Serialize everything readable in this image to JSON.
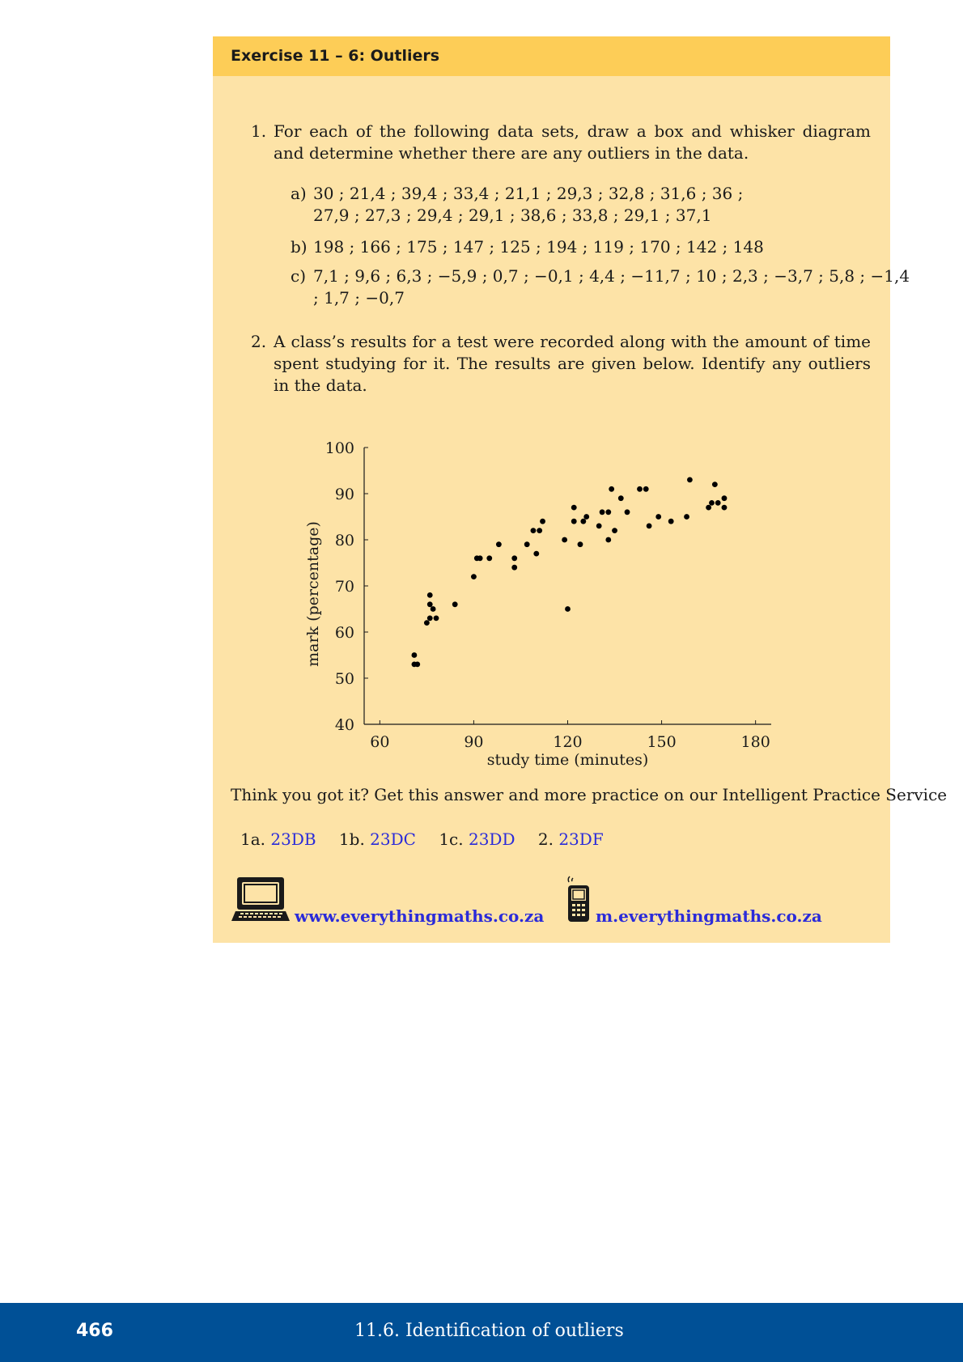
{
  "exercise": {
    "title": "Exercise 11 – 6: Outliers"
  },
  "questions": {
    "q1": {
      "number": "1.",
      "text": "For each of the following data sets, draw a box and whisker diagram and determine whether there are any outliers in the data.",
      "a": {
        "label": "a)",
        "line1": "30 ; 21,4 ; 39,4 ; 33,4 ; 21,1 ; 29,3 ; 32,8 ; 31,6 ; 36 ;",
        "line2": "27,9 ; 27,3 ; 29,4 ; 29,1 ; 38,6 ; 33,8 ; 29,1 ; 37,1"
      },
      "b": {
        "label": "b)",
        "line1": "198 ; 166 ; 175 ; 147 ; 125 ; 194 ; 119 ; 170 ; 142 ; 148"
      },
      "c": {
        "label": "c)",
        "line1": "7,1 ; 9,6 ; 6,3 ; −5,9 ; 0,7 ; −0,1 ; 4,4 ; −11,7 ; 10 ; 2,3 ; −3,7 ; 5,8 ; −1,4",
        "line2": "; 1,7 ; −0,7"
      }
    },
    "q2": {
      "number": "2.",
      "text": "A class’s results for a test were recorded along with the amount of time spent studying for it. The results are given below. Identify any outliers in the data."
    }
  },
  "chart_data": {
    "type": "scatter",
    "title": "",
    "xlabel": "study time (minutes)",
    "ylabel": "mark (percentage)",
    "xlim": [
      55,
      185
    ],
    "ylim": [
      40,
      100
    ],
    "xticks": [
      60,
      90,
      120,
      150,
      180
    ],
    "yticks": [
      40,
      50,
      60,
      70,
      80,
      90,
      100
    ],
    "points": [
      [
        71,
        55
      ],
      [
        71,
        53
      ],
      [
        72,
        53
      ],
      [
        75,
        62
      ],
      [
        76,
        63
      ],
      [
        76,
        66
      ],
      [
        76,
        68
      ],
      [
        77,
        65
      ],
      [
        78,
        63
      ],
      [
        84,
        66
      ],
      [
        90,
        72
      ],
      [
        91,
        76
      ],
      [
        92,
        76
      ],
      [
        95,
        76
      ],
      [
        98,
        79
      ],
      [
        103,
        76
      ],
      [
        103,
        74
      ],
      [
        107,
        79
      ],
      [
        109,
        82
      ],
      [
        110,
        77
      ],
      [
        111,
        82
      ],
      [
        112,
        84
      ],
      [
        119,
        80
      ],
      [
        120,
        65
      ],
      [
        122,
        87
      ],
      [
        122,
        84
      ],
      [
        124,
        79
      ],
      [
        125,
        84
      ],
      [
        126,
        85
      ],
      [
        130,
        83
      ],
      [
        131,
        86
      ],
      [
        133,
        86
      ],
      [
        133,
        80
      ],
      [
        134,
        91
      ],
      [
        135,
        82
      ],
      [
        137,
        89
      ],
      [
        139,
        86
      ],
      [
        143,
        91
      ],
      [
        145,
        91
      ],
      [
        146,
        83
      ],
      [
        149,
        85
      ],
      [
        153,
        84
      ],
      [
        158,
        85
      ],
      [
        159,
        93
      ],
      [
        165,
        87
      ],
      [
        166,
        88
      ],
      [
        167,
        92
      ],
      [
        168,
        88
      ],
      [
        170,
        89
      ],
      [
        170,
        87
      ]
    ]
  },
  "practice": {
    "text": "Think you got it? Get this answer and more practice on our Intelligent Practice Service",
    "codes": [
      {
        "label": "1a.",
        "code": "23DB"
      },
      {
        "label": "1b.",
        "code": "23DC"
      },
      {
        "label": "1c.",
        "code": "23DD"
      },
      {
        "label": "2.",
        "code": "23DF"
      }
    ],
    "web_link": "www.everythingmaths.co.za",
    "mobile_link": "m.everythingmaths.co.za"
  },
  "footer": {
    "page_number": "466",
    "section_title": "11.6.   Identification of outliers"
  },
  "colors": {
    "box_background": "#fde3a7",
    "header_background": "#fdcd57",
    "link": "#2b2bd9",
    "footer_background": "#005096"
  }
}
